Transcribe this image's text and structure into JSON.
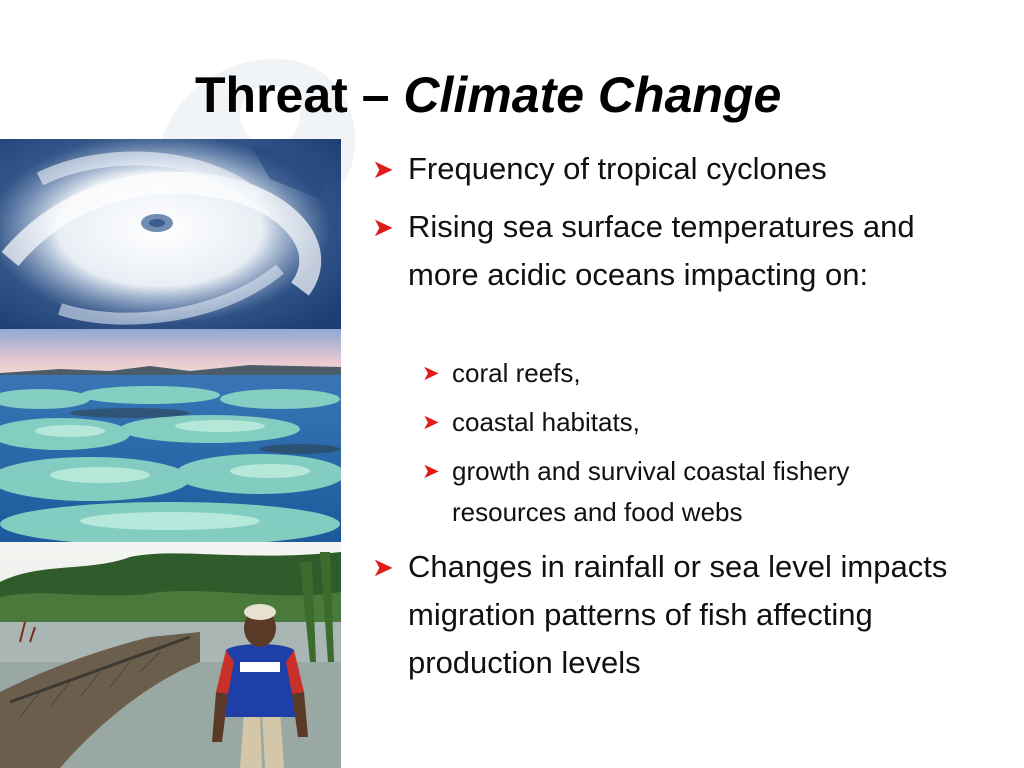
{
  "slide": {
    "title_plain": "Threat – ",
    "title_italic": "Climate Change",
    "bullets": {
      "b1": "Frequency of tropical cyclones",
      "b2": "Rising sea surface temperatures and more acidic oceans impacting on:",
      "b2a": " coral reefs,",
      "b2b": "coastal habitats,",
      "b2c": "growth and survival coastal fishery resources and  food webs",
      "b3": "Changes in rainfall or sea level impacts migration patterns of fish affecting production levels"
    },
    "bullet_icon": "arrow-bullet-icon",
    "photos": [
      "cyclone-satellite-photo",
      "bleached-coral-reef-photo",
      "fisherman-mangrove-photo"
    ],
    "colors": {
      "bullet": "#e31a1a",
      "text": "#111111",
      "background": "#ffffff"
    }
  }
}
